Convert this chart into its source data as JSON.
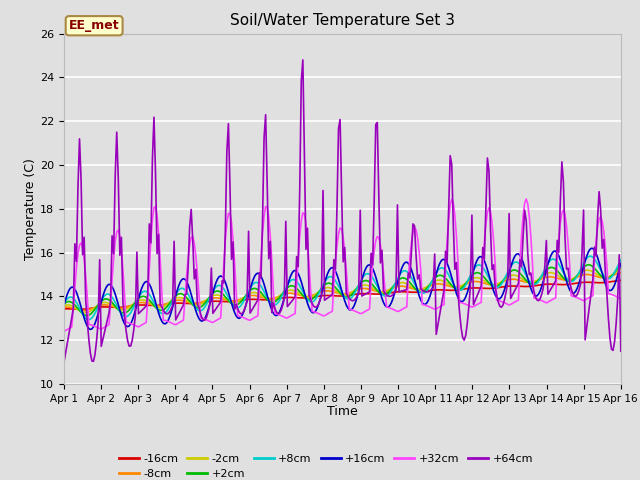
{
  "title": "Soil/Water Temperature Set 3",
  "xlabel": "Time",
  "ylabel": "Temperature (C)",
  "ylim": [
    10,
    26
  ],
  "xlim": [
    0,
    15
  ],
  "bg_color": "#e0e0e0",
  "annotation_text": "EE_met",
  "annotation_bg": "#ffffcc",
  "annotation_border": "#aa8844",
  "annotation_text_color": "#880000",
  "series_colors": {
    "-16cm": "#dd0000",
    "-8cm": "#ff8800",
    "-2cm": "#cccc00",
    "+2cm": "#00bb00",
    "+8cm": "#00cccc",
    "+16cm": "#0000cc",
    "+32cm": "#ff44ff",
    "+64cm": "#9900bb"
  },
  "xtick_labels": [
    "Apr 1",
    "Apr 2",
    "Apr 3",
    "Apr 4",
    "Apr 5",
    "Apr 6",
    "Apr 7",
    "Apr 8",
    "Apr 9",
    "Apr 10",
    "Apr 11",
    "Apr 12",
    "Apr 13",
    "Apr 14",
    "Apr 15",
    "Apr 16"
  ],
  "ytick_labels": [
    10,
    12,
    14,
    16,
    18,
    20,
    22,
    24,
    26
  ],
  "legend_order": [
    "-16cm",
    "-8cm",
    "-2cm",
    "+2cm",
    "+8cm",
    "+16cm",
    "+32cm",
    "+64cm"
  ]
}
